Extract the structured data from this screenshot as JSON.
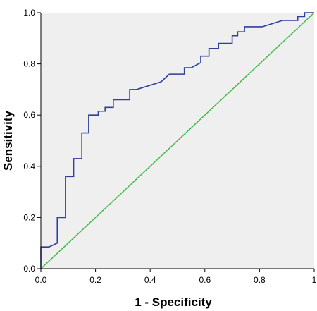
{
  "chart_data": {
    "type": "line",
    "title": "",
    "xlabel": "1 - Specificity",
    "ylabel": "Sensitivity",
    "xlim": [
      0.0,
      1.0
    ],
    "ylim": [
      0.0,
      1.0
    ],
    "x_ticks": [
      0.0,
      0.2,
      0.4,
      0.6,
      0.8,
      1.0
    ],
    "x_tick_labels": [
      "0.0",
      "0.2",
      "0.4",
      "0.6",
      "0.8",
      "1"
    ],
    "y_ticks": [
      0.0,
      0.2,
      0.4,
      0.6,
      0.8,
      1.0
    ],
    "y_tick_labels": [
      "0.0",
      "0.2",
      "0.4",
      "0.6",
      "0.8",
      "1.0"
    ],
    "grid": false,
    "legend": "none",
    "series": [
      {
        "color": "#2e3f9c",
        "x": [
          0.0,
          0.0,
          0.03,
          0.03,
          0.06,
          0.06,
          0.09,
          0.09,
          0.12,
          0.12,
          0.15,
          0.15,
          0.175,
          0.175,
          0.21,
          0.21,
          0.235,
          0.235,
          0.265,
          0.265,
          0.325,
          0.325,
          0.35,
          0.44,
          0.47,
          0.47,
          0.525,
          0.525,
          0.55,
          0.585,
          0.585,
          0.615,
          0.615,
          0.65,
          0.65,
          0.7,
          0.7,
          0.72,
          0.72,
          0.745,
          0.745,
          0.81,
          0.885,
          0.885,
          0.94,
          0.94,
          0.965,
          0.965,
          1.0
        ],
        "y": [
          0.0,
          0.085,
          0.085,
          0.085,
          0.1,
          0.2,
          0.2,
          0.36,
          0.36,
          0.43,
          0.43,
          0.53,
          0.53,
          0.6,
          0.6,
          0.615,
          0.615,
          0.63,
          0.63,
          0.66,
          0.66,
          0.7,
          0.7,
          0.73,
          0.76,
          0.76,
          0.76,
          0.785,
          0.785,
          0.805,
          0.83,
          0.83,
          0.86,
          0.86,
          0.88,
          0.88,
          0.91,
          0.91,
          0.925,
          0.925,
          0.945,
          0.945,
          0.97,
          0.97,
          0.97,
          0.985,
          0.985,
          1.0,
          1.0
        ]
      },
      {
        "color": "#3cb83c",
        "x": [
          0.0,
          1.0
        ],
        "y": [
          0.0,
          1.0
        ]
      }
    ]
  },
  "colors": {
    "plot_background": "#efefef",
    "axis_line": "#000000",
    "roc_curve": "#2e3f9c",
    "reference_line": "#3cb83c"
  }
}
